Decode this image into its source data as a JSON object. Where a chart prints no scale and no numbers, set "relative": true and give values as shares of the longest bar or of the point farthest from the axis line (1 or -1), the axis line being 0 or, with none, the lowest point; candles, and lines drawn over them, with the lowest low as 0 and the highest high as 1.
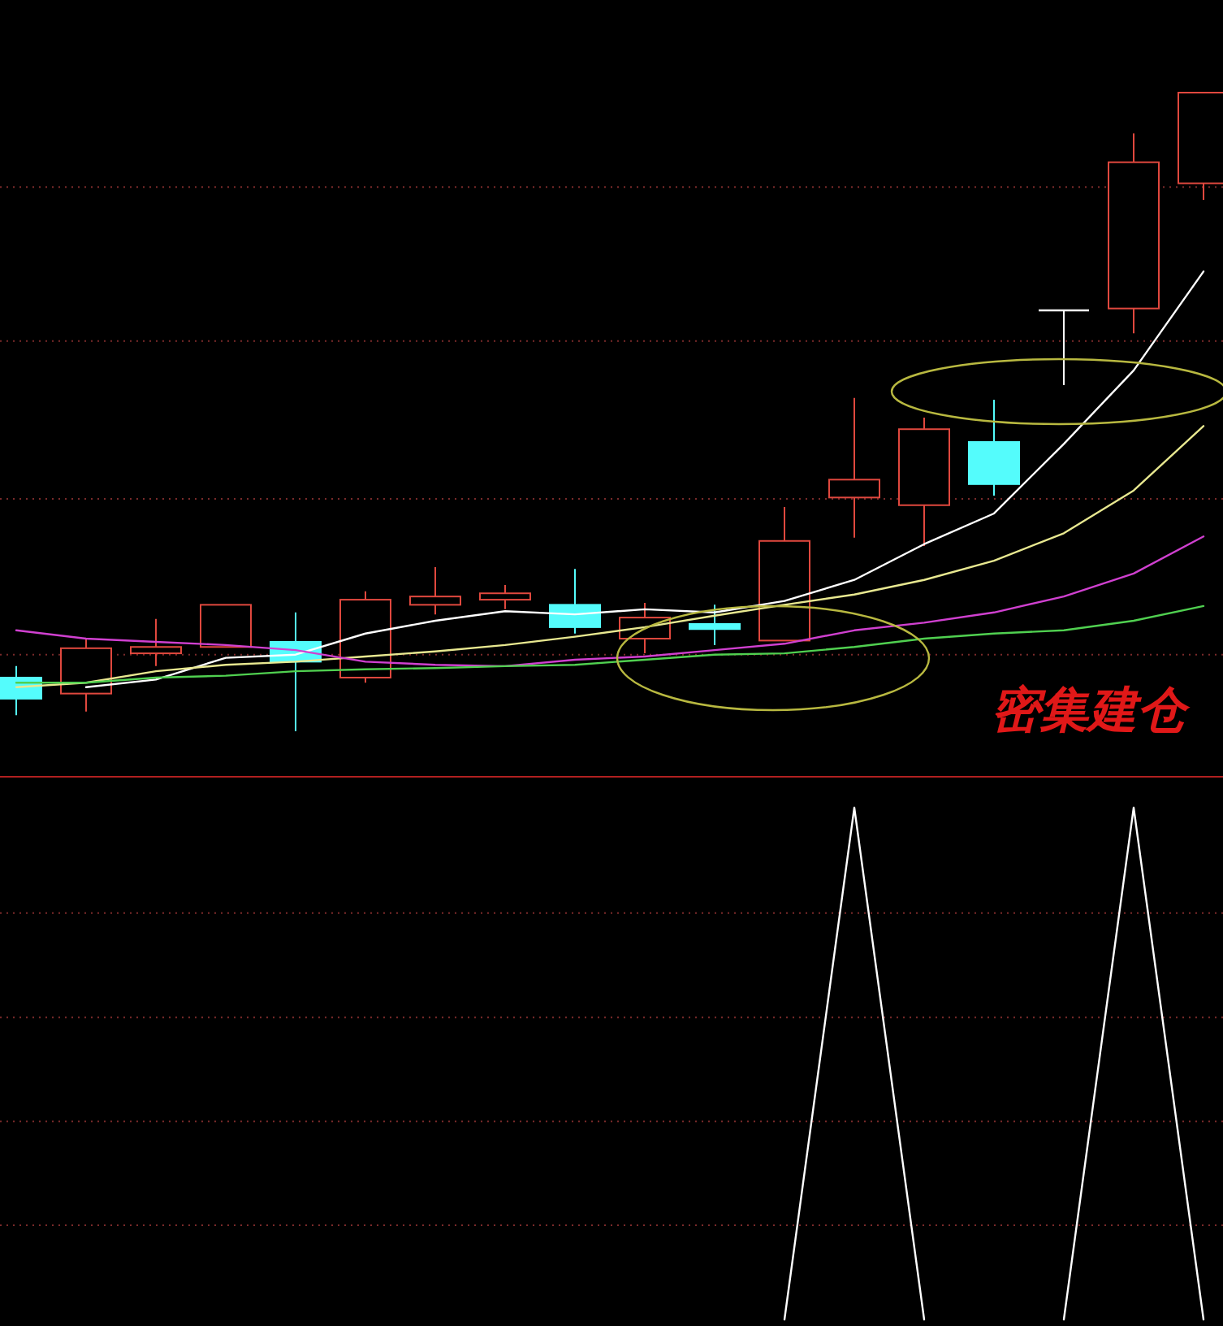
{
  "chart_data": [
    {
      "type": "candlestick",
      "relative": true,
      "ref_lines": [
        {
          "axis": "y",
          "value": 0.852,
          "color": "#7a2a2a",
          "line_style": "dotted"
        },
        {
          "axis": "y",
          "value": 0.611,
          "color": "#7a2a2a",
          "line_style": "dotted"
        },
        {
          "axis": "y",
          "value": 0.364,
          "color": "#7a2a2a",
          "line_style": "dotted"
        },
        {
          "axis": "y",
          "value": 0.12,
          "color": "#7a2a2a",
          "line_style": "dotted"
        }
      ],
      "categories": [
        null,
        null,
        null,
        null,
        null,
        null,
        null,
        null,
        null,
        null,
        null,
        null,
        null,
        null,
        null,
        null,
        null,
        null
      ],
      "ohlc": [
        [
          0.084,
          0.102,
          0.025,
          0.051
        ],
        [
          0.059,
          0.145,
          0.031,
          0.13
        ],
        [
          0.122,
          0.176,
          0.102,
          0.132
        ],
        [
          0.132,
          0.198,
          0.132,
          0.198
        ],
        [
          0.14,
          0.186,
          0,
          0.109
        ],
        [
          0.084,
          0.219,
          0.076,
          0.206
        ],
        [
          0.198,
          0.257,
          0.183,
          0.211
        ],
        [
          0.206,
          0.229,
          0.191,
          0.216
        ],
        [
          0.198,
          0.254,
          0.153,
          0.163
        ],
        [
          0.145,
          0.201,
          0.122,
          0.178
        ],
        [
          0.168,
          0.198,
          0.135,
          0.16
        ],
        [
          0.142,
          0.351,
          0.142,
          0.298
        ],
        [
          0.366,
          0.522,
          0.303,
          0.394
        ],
        [
          0.354,
          0.491,
          0.29,
          0.473
        ],
        [
          0.453,
          0.519,
          0.369,
          0.387
        ],
        [
          0.659,
          0.659,
          0.542,
          0.659
        ],
        [
          0.662,
          0.936,
          0.623,
          0.891
        ],
        [
          0.858,
          1,
          0.832,
          1
        ]
      ],
      "colors": [
        "#54fcfc",
        "#e0483e",
        "#e0483e",
        "#e0483e",
        "#54fcfc",
        "#e0483e",
        "#e0483e",
        "#e0483e",
        "#54fcfc",
        "#e0483e",
        "#54fcfc",
        "#e0483e",
        "#e0483e",
        "#e0483e",
        "#54fcfc",
        "#ffffff",
        "#e0483e",
        "#e0483e"
      ],
      "series": [
        {
          "type": "line",
          "color": "#ffffff",
          "values": [
            null,
            0.069,
            0.081,
            0.115,
            0.12,
            0.153,
            0.173,
            0.188,
            0.183,
            0.191,
            0.186,
            0.204,
            0.237,
            0.293,
            0.341,
            0.45,
            0.565,
            0.72
          ]
        },
        {
          "type": "line",
          "color": "#e8e890",
          "values": [
            0.069,
            0.076,
            0.094,
            0.104,
            0.109,
            0.117,
            0.125,
            0.135,
            0.148,
            0.163,
            0.181,
            0.198,
            0.214,
            0.237,
            0.267,
            0.31,
            0.377,
            0.478
          ]
        },
        {
          "type": "line",
          "color": "#d040d0",
          "values": [
            0.158,
            0.145,
            0.14,
            0.135,
            0.127,
            0.109,
            0.104,
            0.102,
            0.112,
            0.117,
            0.127,
            0.137,
            0.158,
            0.17,
            0.186,
            0.211,
            0.247,
            0.305
          ]
        },
        {
          "type": "line",
          "color": "#50d050",
          "values": [
            0.076,
            0.076,
            0.084,
            0.087,
            0.094,
            0.097,
            0.099,
            0.102,
            0.104,
            0.112,
            0.12,
            0.122,
            0.132,
            0.145,
            0.153,
            0.158,
            0.173,
            0.196
          ]
        }
      ],
      "annotations": [
        "密集建仓"
      ]
    },
    {
      "type": "line",
      "relative": true,
      "ref_lines": [
        {
          "axis": "y",
          "value": 0.794,
          "color": "#7a2a2a",
          "line_style": "dotted"
        },
        {
          "axis": "y",
          "value": 0.59,
          "color": "#7a2a2a",
          "line_style": "dotted"
        },
        {
          "axis": "y",
          "value": 0.387,
          "color": "#7a2a2a",
          "line_style": "dotted"
        },
        {
          "axis": "y",
          "value": 0.184,
          "color": "#7a2a2a",
          "line_style": "dotted"
        }
      ],
      "categories": [
        null,
        null,
        null,
        null,
        null,
        null,
        null,
        null,
        null,
        null,
        null,
        null,
        null,
        null,
        null,
        null,
        null,
        null
      ],
      "series": [
        {
          "color": "#ffffff",
          "values": [
            null,
            null,
            null,
            null,
            null,
            null,
            null,
            null,
            null,
            null,
            null,
            0,
            1,
            0,
            null,
            0,
            1,
            0
          ]
        }
      ]
    }
  ]
}
